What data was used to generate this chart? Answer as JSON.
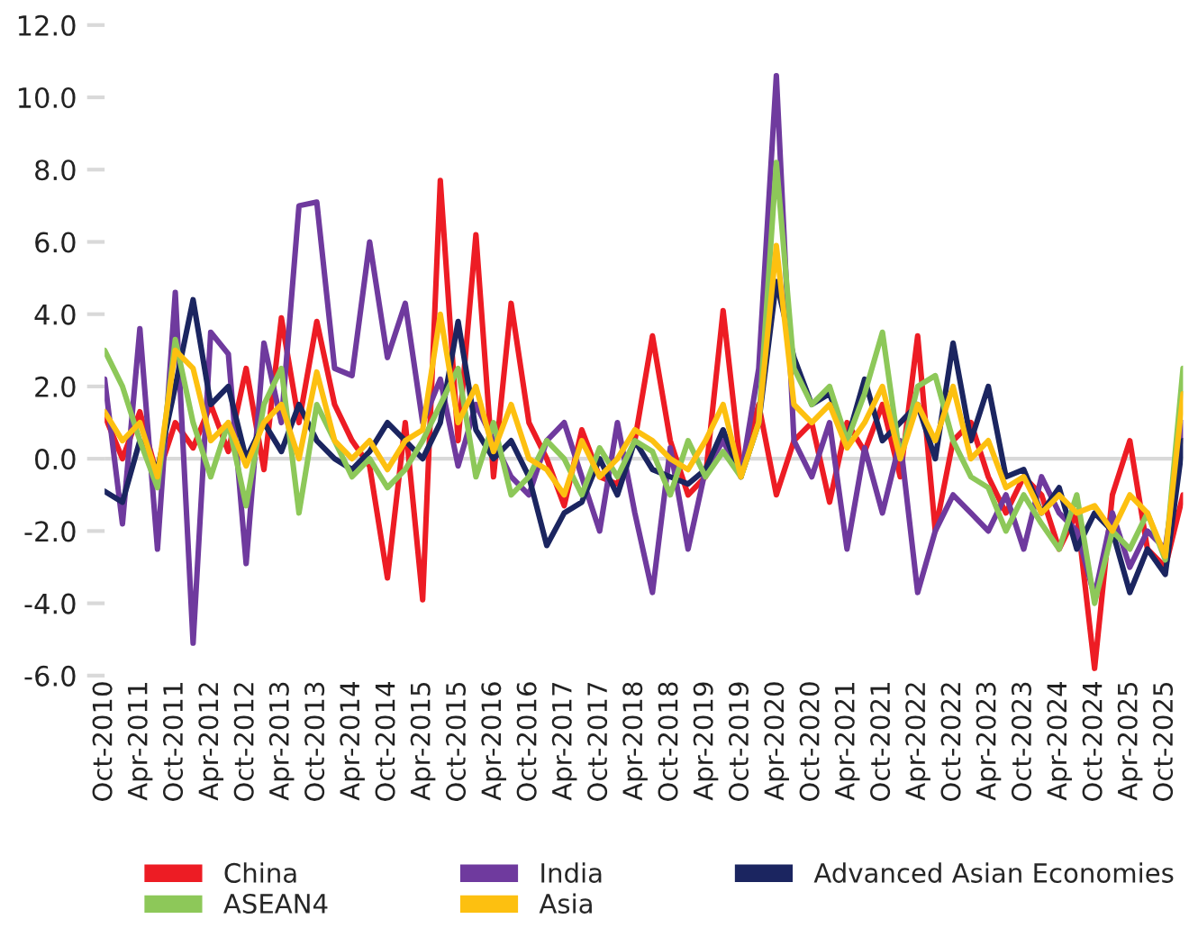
{
  "chart_data": {
    "type": "line",
    "x": [
      "2010-10",
      "2011-01",
      "2011-04",
      "2011-07",
      "2011-10",
      "2012-01",
      "2012-04",
      "2012-07",
      "2012-10",
      "2013-01",
      "2013-04",
      "2013-07",
      "2013-10",
      "2014-01",
      "2014-04",
      "2014-07",
      "2014-10",
      "2015-01",
      "2015-04",
      "2015-07",
      "2015-10",
      "2016-01",
      "2016-04",
      "2016-07",
      "2016-10",
      "2017-01",
      "2017-04",
      "2017-07",
      "2017-10",
      "2018-01",
      "2018-04",
      "2018-07",
      "2018-10",
      "2019-01",
      "2019-04",
      "2019-07",
      "2019-10",
      "2020-01",
      "2020-04",
      "2020-07",
      "2020-10",
      "2021-01",
      "2021-04",
      "2021-07",
      "2021-10",
      "2022-01",
      "2022-04",
      "2022-07",
      "2022-10",
      "2023-01",
      "2023-04",
      "2023-07",
      "2023-10",
      "2024-01",
      "2024-04",
      "2024-07",
      "2024-10",
      "2025-01",
      "2025-04",
      "2025-07",
      "2025-10",
      "2026-01"
    ],
    "series": [
      {
        "name": "China",
        "color": "#ed1c24",
        "values": [
          1.2,
          0.0,
          1.3,
          -0.5,
          1.0,
          0.3,
          1.5,
          0.2,
          2.5,
          -0.3,
          3.9,
          1.0,
          3.8,
          1.5,
          0.5,
          -0.2,
          -3.3,
          1.0,
          -3.9,
          7.7,
          0.5,
          6.2,
          -0.5,
          4.3,
          1.0,
          0.0,
          -1.3,
          0.8,
          -0.5,
          -0.7,
          0.5,
          3.4,
          0.5,
          -1.0,
          -0.5,
          4.1,
          -0.3,
          1.5,
          -1.0,
          0.5,
          1.0,
          -1.2,
          1.0,
          0.2,
          1.5,
          -0.5,
          3.4,
          -2.0,
          0.5,
          1.0,
          -0.5,
          -1.5,
          -0.5,
          -1.0,
          -2.5,
          -1.5,
          -5.8,
          -1.0,
          0.5,
          -2.5,
          -3.0,
          -1.0
        ]
      },
      {
        "name": "India",
        "color": "#6f3a9e",
        "values": [
          2.2,
          -1.8,
          3.6,
          -2.5,
          4.6,
          -5.1,
          3.5,
          2.9,
          -2.9,
          3.2,
          1.0,
          7.0,
          7.1,
          2.5,
          2.3,
          6.0,
          2.8,
          4.3,
          1.0,
          2.2,
          -0.2,
          1.5,
          0.5,
          -0.5,
          -1.0,
          0.5,
          1.0,
          -0.5,
          -2.0,
          1.0,
          -1.5,
          -3.7,
          0.3,
          -2.5,
          -0.3,
          0.5,
          -0.5,
          2.5,
          10.6,
          0.5,
          -0.5,
          1.0,
          -2.5,
          0.3,
          -1.5,
          0.5,
          -3.7,
          -2.0,
          -1.0,
          -1.5,
          -2.0,
          -1.0,
          -2.5,
          -0.5,
          -1.5,
          -2.0,
          -3.8,
          -1.5,
          -3.0,
          -2.0,
          -2.5,
          1.0
        ]
      },
      {
        "name": "Advanced Asian Economies",
        "color": "#1b2560",
        "values": [
          -0.9,
          -1.2,
          0.5,
          -0.3,
          2.0,
          4.4,
          1.5,
          2.0,
          0.0,
          1.0,
          0.2,
          1.5,
          0.5,
          0.0,
          -0.3,
          0.2,
          1.0,
          0.5,
          0.0,
          1.0,
          3.8,
          0.8,
          0.0,
          0.5,
          -0.5,
          -2.4,
          -1.5,
          -1.2,
          0.0,
          -1.0,
          0.5,
          -0.3,
          -0.5,
          -0.7,
          -0.3,
          0.8,
          -0.5,
          1.0,
          4.9,
          2.8,
          1.5,
          1.8,
          0.5,
          2.2,
          0.5,
          1.0,
          1.5,
          0.0,
          3.2,
          0.5,
          2.0,
          -0.5,
          -0.3,
          -1.5,
          -0.8,
          -2.5,
          -1.5,
          -2.0,
          -3.7,
          -2.5,
          -3.2,
          0.5
        ]
      },
      {
        "name": "ASEAN4",
        "color": "#8dc859",
        "values": [
          3.0,
          2.0,
          0.5,
          -0.8,
          3.3,
          1.0,
          -0.5,
          1.0,
          -1.3,
          1.5,
          2.5,
          -1.5,
          1.5,
          0.5,
          -0.5,
          0.0,
          -0.8,
          -0.3,
          0.5,
          1.5,
          2.5,
          -0.5,
          1.0,
          -1.0,
          -0.5,
          0.5,
          0.0,
          -1.0,
          0.3,
          -0.5,
          0.5,
          0.2,
          -1.0,
          0.5,
          -0.5,
          0.2,
          -0.5,
          1.0,
          8.2,
          2.5,
          1.5,
          2.0,
          0.5,
          1.8,
          3.5,
          0.0,
          2.0,
          2.3,
          0.5,
          -0.5,
          -0.8,
          -2.0,
          -1.0,
          -1.8,
          -2.5,
          -1.0,
          -4.0,
          -2.0,
          -2.5,
          -1.5,
          -2.8,
          2.5
        ]
      },
      {
        "name": "Asia",
        "color": "#fdc010",
        "values": [
          1.3,
          0.5,
          1.0,
          -0.5,
          3.0,
          2.5,
          0.5,
          1.0,
          -0.2,
          1.0,
          1.5,
          0.0,
          2.4,
          0.5,
          0.0,
          0.5,
          -0.3,
          0.5,
          0.8,
          4.0,
          1.0,
          2.0,
          0.2,
          1.5,
          0.0,
          -0.3,
          -1.0,
          0.5,
          -0.5,
          0.0,
          0.8,
          0.5,
          0.0,
          -0.3,
          0.5,
          1.5,
          -0.5,
          1.0,
          5.9,
          1.5,
          1.0,
          1.5,
          0.3,
          1.0,
          2.0,
          0.0,
          1.5,
          0.5,
          2.0,
          0.0,
          0.5,
          -0.8,
          -0.5,
          -1.5,
          -1.0,
          -1.5,
          -1.3,
          -2.0,
          -1.0,
          -1.5,
          -2.7,
          1.8
        ]
      }
    ],
    "xlim": [
      "2010-10",
      "2026-01"
    ],
    "xticks": [
      {
        "value": "2010-10",
        "label": "Oct-2010"
      },
      {
        "value": "2011-04",
        "label": "Apr-2011"
      },
      {
        "value": "2011-10",
        "label": "Oct-2011"
      },
      {
        "value": "2012-04",
        "label": "Apr-2012"
      },
      {
        "value": "2012-10",
        "label": "Oct-2012"
      },
      {
        "value": "2013-04",
        "label": "Apr-2013"
      },
      {
        "value": "2013-10",
        "label": "Oct-2013"
      },
      {
        "value": "2014-04",
        "label": "Apr-2014"
      },
      {
        "value": "2014-10",
        "label": "Oct-2014"
      },
      {
        "value": "2015-04",
        "label": "Apr-2015"
      },
      {
        "value": "2015-10",
        "label": "Oct-2015"
      },
      {
        "value": "2016-04",
        "label": "Apr-2016"
      },
      {
        "value": "2016-10",
        "label": "Oct-2016"
      },
      {
        "value": "2017-04",
        "label": "Apr-2017"
      },
      {
        "value": "2017-10",
        "label": "Oct-2017"
      },
      {
        "value": "2018-04",
        "label": "Apr-2018"
      },
      {
        "value": "2018-10",
        "label": "Oct-2018"
      },
      {
        "value": "2019-04",
        "label": "Apr-2019"
      },
      {
        "value": "2019-10",
        "label": "Oct-2019"
      },
      {
        "value": "2020-04",
        "label": "Apr-2020"
      },
      {
        "value": "2020-10",
        "label": "Oct-2020"
      },
      {
        "value": "2021-04",
        "label": "Apr-2021"
      },
      {
        "value": "2021-10",
        "label": "Oct-2021"
      },
      {
        "value": "2022-04",
        "label": "Apr-2022"
      },
      {
        "value": "2022-10",
        "label": "Oct-2022"
      },
      {
        "value": "2023-04",
        "label": "Apr-2023"
      },
      {
        "value": "2023-10",
        "label": "Oct-2023"
      },
      {
        "value": "2024-04",
        "label": "Apr-2024"
      },
      {
        "value": "2024-10",
        "label": "Oct-2024"
      },
      {
        "value": "2025-04",
        "label": "Apr-2025"
      },
      {
        "value": "2025-10",
        "label": "Oct-2025"
      }
    ],
    "ylim": [
      -6,
      12
    ],
    "yticks": [
      {
        "value": -6,
        "label": "-6.0"
      },
      {
        "value": -4,
        "label": "-4.0"
      },
      {
        "value": -2,
        "label": "-2.0"
      },
      {
        "value": 0,
        "label": "0.0"
      },
      {
        "value": 2,
        "label": "2.0"
      },
      {
        "value": 4,
        "label": "4.0"
      },
      {
        "value": 6,
        "label": "6.0"
      },
      {
        "value": 8,
        "label": "8.0"
      },
      {
        "value": 10,
        "label": "10.0"
      },
      {
        "value": 12,
        "label": "12.0"
      }
    ],
    "ref_lines": [
      {
        "axis": "y",
        "value": 0,
        "color": "#d9d9d9"
      }
    ],
    "grid": false,
    "legend": "bottom",
    "line_style": "solid",
    "marker": "none"
  }
}
